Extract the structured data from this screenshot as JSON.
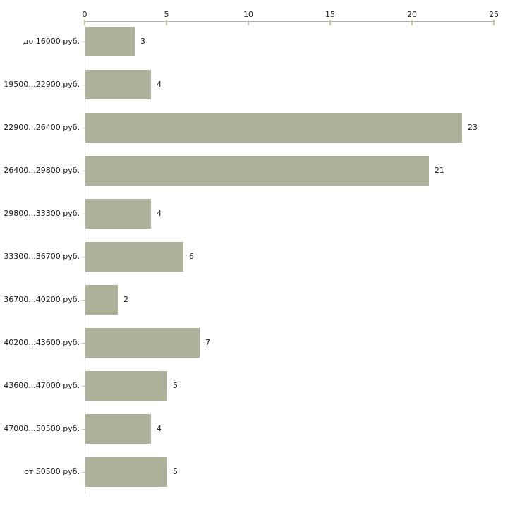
{
  "chart_data": {
    "type": "bar",
    "orientation": "horizontal",
    "title": "",
    "xlabel": "",
    "ylabel": "",
    "categories": [
      "до 16000 руб.",
      "19500...22900 руб.",
      "22900...26400 руб.",
      "26400...29800 руб.",
      "29800...33300 руб.",
      "33300...36700 руб.",
      "36700...40200 руб.",
      "40200...43600 руб.",
      "43600...47000 руб.",
      "47000...50500 руб.",
      "от 50500 руб."
    ],
    "values": [
      3,
      4,
      23,
      21,
      4,
      6,
      2,
      7,
      5,
      4,
      5
    ],
    "x_ticks": [
      0,
      5,
      10,
      15,
      20,
      25
    ],
    "xlim": [
      0,
      25
    ],
    "grid": false,
    "legend": false,
    "axis_position": "top",
    "bar_color": "#acb199",
    "axis_color": "#b5b5b5",
    "tick_color": "#c6c79f",
    "text_color": "#1a1a1a"
  }
}
